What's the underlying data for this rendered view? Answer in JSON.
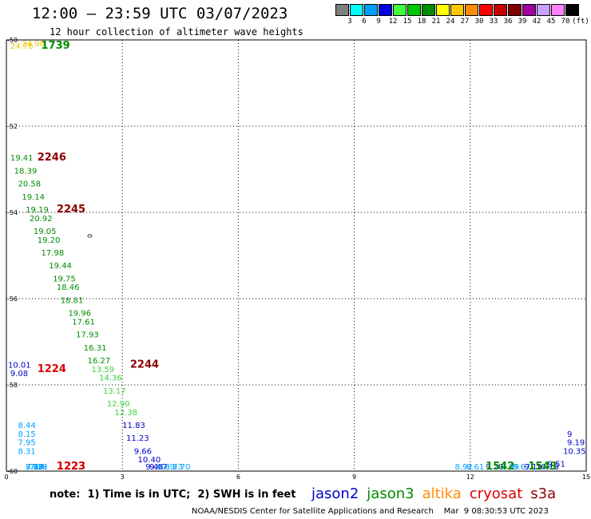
{
  "header": {
    "title": "12:00 — 23:59 UTC 03/07/2023",
    "subtitle": "12 hour collection of altimeter wave heights"
  },
  "colorbar": {
    "unit_label": "(ft)",
    "steps": [
      {
        "label": "3",
        "color": "#7f7f7f"
      },
      {
        "label": "6",
        "color": "#00ffff"
      },
      {
        "label": "9",
        "color": "#00a0ff"
      },
      {
        "label": "12",
        "color": "#0000e0"
      },
      {
        "label": "15",
        "color": "#40ff40"
      },
      {
        "label": "18",
        "color": "#00c800"
      },
      {
        "label": "21",
        "color": "#008c00"
      },
      {
        "label": "24",
        "color": "#ffff00"
      },
      {
        "label": "27",
        "color": "#ffc800"
      },
      {
        "label": "30",
        "color": "#ff8c00"
      },
      {
        "label": "33",
        "color": "#ff0000"
      },
      {
        "label": "36",
        "color": "#c80000"
      },
      {
        "label": "39",
        "color": "#800000"
      },
      {
        "label": "42",
        "color": "#a000a0"
      },
      {
        "label": "45",
        "color": "#c8a0ff"
      },
      {
        "label": "70",
        "color": "#ff80ff"
      },
      {
        "label": "",
        "color": "#000000"
      }
    ]
  },
  "map": {
    "lon_range": [
      0,
      15
    ],
    "lat_range": [
      -60,
      -50
    ],
    "x_ticks": [
      "0",
      "3",
      "6",
      "9",
      "12",
      "15"
    ],
    "y_ticks": [
      "-50",
      "-52",
      "-54",
      "-56",
      "-58",
      "-60"
    ],
    "grid": "dotted",
    "contour_label": "0",
    "colors": {
      "jason2": "#0000cc",
      "jason3": "#008c00",
      "altika": "#ff8c00",
      "cryosat": "#dd0000",
      "s3a": "#8b0000",
      "cyan": "#00a0ff",
      "lightgreen": "#40d040",
      "yellow": "#e8c800"
    },
    "values": [
      {
        "lon": 0.4,
        "lat": -50.0,
        "v": "24.90",
        "c": "yellow"
      },
      {
        "lon": 0.1,
        "lat": -50.2,
        "v": "24.78",
        "c": "yellow"
      },
      {
        "lon": 0.1,
        "lat": -52.8,
        "v": "19.41",
        "c": "jason3"
      },
      {
        "lon": 0.2,
        "lat": -53.1,
        "v": "18.39",
        "c": "jason3"
      },
      {
        "lon": 0.3,
        "lat": -53.4,
        "v": "20.58",
        "c": "jason3"
      },
      {
        "lon": 0.4,
        "lat": -53.7,
        "v": "19.14",
        "c": "jason3"
      },
      {
        "lon": 0.5,
        "lat": -54.0,
        "v": "19.19",
        "c": "jason3"
      },
      {
        "lon": 0.6,
        "lat": -54.2,
        "v": "20.92",
        "c": "jason3"
      },
      {
        "lon": 0.7,
        "lat": -54.5,
        "v": "19.05",
        "c": "jason3"
      },
      {
        "lon": 0.8,
        "lat": -54.7,
        "v": "19.20",
        "c": "jason3"
      },
      {
        "lon": 0.9,
        "lat": -55.0,
        "v": "17.98",
        "c": "jason3"
      },
      {
        "lon": 1.1,
        "lat": -55.3,
        "v": "19.44",
        "c": "jason3"
      },
      {
        "lon": 1.2,
        "lat": -55.6,
        "v": "19.75",
        "c": "jason3"
      },
      {
        "lon": 1.3,
        "lat": -55.8,
        "v": "18.46",
        "c": "jason3"
      },
      {
        "lon": 1.4,
        "lat": -56.1,
        "v": "18.81",
        "c": "jason3"
      },
      {
        "lon": 1.6,
        "lat": -56.4,
        "v": "19.96",
        "c": "jason3"
      },
      {
        "lon": 1.7,
        "lat": -56.6,
        "v": "17.61",
        "c": "jason3"
      },
      {
        "lon": 1.8,
        "lat": -56.9,
        "v": "17.93",
        "c": "jason3"
      },
      {
        "lon": 2.0,
        "lat": -57.2,
        "v": "16.31",
        "c": "jason3"
      },
      {
        "lon": 2.1,
        "lat": -57.5,
        "v": "16.27",
        "c": "jason3"
      },
      {
        "lon": 2.2,
        "lat": -57.7,
        "v": "13.59",
        "c": "lightgreen"
      },
      {
        "lon": 2.4,
        "lat": -57.9,
        "v": "14.36",
        "c": "lightgreen"
      },
      {
        "lon": 2.5,
        "lat": -58.2,
        "v": "13.17",
        "c": "lightgreen"
      },
      {
        "lon": 2.6,
        "lat": -58.5,
        "v": "12.90",
        "c": "lightgreen"
      },
      {
        "lon": 2.8,
        "lat": -58.7,
        "v": "12.38",
        "c": "lightgreen"
      },
      {
        "lon": 3.0,
        "lat": -59.0,
        "v": "11.83",
        "c": "jason2"
      },
      {
        "lon": 3.1,
        "lat": -59.3,
        "v": "11.23",
        "c": "jason2"
      },
      {
        "lon": 3.3,
        "lat": -59.6,
        "v": "9.66",
        "c": "jason2"
      },
      {
        "lon": 3.4,
        "lat": -59.8,
        "v": "10.40",
        "c": "jason2"
      },
      {
        "lon": 3.6,
        "lat": -60.1,
        "v": "9.48",
        "c": "jason2"
      },
      {
        "lon": 3.7,
        "lat": -60.4,
        "v": "9.07",
        "c": "jason2"
      },
      {
        "lon": 3.9,
        "lat": -60.7,
        "v": "8.69",
        "c": "cyan"
      },
      {
        "lon": 4.1,
        "lat": -60.9,
        "v": "8.53",
        "c": "cyan"
      },
      {
        "lon": 4.3,
        "lat": -61.2,
        "v": "7.70",
        "c": "cyan"
      },
      {
        "lon": 0.0,
        "lat": -57.6,
        "v": "10.01",
        "c": "jason2"
      },
      {
        "lon": 0.1,
        "lat": -57.8,
        "v": "9.08",
        "c": "jason2"
      },
      {
        "lon": 0.3,
        "lat": -59.0,
        "v": "8.44",
        "c": "cyan"
      },
      {
        "lon": 0.3,
        "lat": -59.2,
        "v": "8.15",
        "c": "cyan"
      },
      {
        "lon": 0.3,
        "lat": -59.4,
        "v": "7.95",
        "c": "cyan"
      },
      {
        "lon": 0.3,
        "lat": -59.6,
        "v": "8.31",
        "c": "cyan"
      },
      {
        "lon": 0.5,
        "lat": -60.2,
        "v": "7.13",
        "c": "cyan"
      },
      {
        "lon": 0.5,
        "lat": -60.4,
        "v": "7.27",
        "c": "cyan"
      },
      {
        "lon": 0.5,
        "lat": -60.6,
        "v": "7.40",
        "c": "cyan"
      },
      {
        "lon": 0.5,
        "lat": -60.9,
        "v": "8.07",
        "c": "cyan"
      },
      {
        "lon": 0.6,
        "lat": -61.2,
        "v": "7.39",
        "c": "cyan"
      },
      {
        "lon": 0.6,
        "lat": -61.5,
        "v": "7.28",
        "c": "cyan"
      },
      {
        "lon": 11.6,
        "lat": -61.6,
        "v": "8.92",
        "c": "cyan"
      },
      {
        "lon": 11.9,
        "lat": -61.4,
        "v": "8.61",
        "c": "cyan"
      },
      {
        "lon": 12.4,
        "lat": -61.0,
        "v": "9.20",
        "c": "jason2"
      },
      {
        "lon": 12.8,
        "lat": -60.8,
        "v": "8.99",
        "c": "cyan"
      },
      {
        "lon": 13.1,
        "lat": -60.6,
        "v": "8.67",
        "c": "cyan"
      },
      {
        "lon": 13.4,
        "lat": -60.4,
        "v": "9.11",
        "c": "jason2"
      },
      {
        "lon": 13.7,
        "lat": -60.1,
        "v": "10.18",
        "c": "jason2"
      },
      {
        "lon": 14.0,
        "lat": -59.9,
        "v": "9.51",
        "c": "jason2"
      },
      {
        "lon": 14.4,
        "lat": -59.6,
        "v": "10.35",
        "c": "jason2"
      },
      {
        "lon": 14.7,
        "lat": -59.4,
        "v": "9.19",
        "c": "jason2"
      },
      {
        "lon": 14.9,
        "lat": -59.2,
        "v": "9",
        "c": "jason2"
      }
    ],
    "times": [
      {
        "lon": 0.9,
        "lat": -50.2,
        "v": "1739",
        "c": "jason3"
      },
      {
        "lon": 0.8,
        "lat": -52.8,
        "v": "2246",
        "c": "s3a"
      },
      {
        "lon": 1.3,
        "lat": -54.0,
        "v": "2245",
        "c": "s3a"
      },
      {
        "lon": 3.2,
        "lat": -57.6,
        "v": "2244",
        "c": "s3a"
      },
      {
        "lon": 0.8,
        "lat": -57.7,
        "v": "1224",
        "c": "cryosat"
      },
      {
        "lon": 1.3,
        "lat": -61.2,
        "v": "1223",
        "c": "cryosat"
      },
      {
        "lon": 1.3,
        "lat": -61.5,
        "v": "1223",
        "c": "cryosat"
      },
      {
        "lon": 13.5,
        "lat": -60.9,
        "v": "1543",
        "c": "jason3"
      },
      {
        "lon": 12.4,
        "lat": -61.6,
        "v": "1542",
        "c": "jason3"
      }
    ]
  },
  "note": "note:  1) Time is in UTC;  2) SWH is in feet",
  "legend": [
    {
      "label": "jason2",
      "color": "#0000cc"
    },
    {
      "label": "jason3",
      "color": "#008c00"
    },
    {
      "label": "altika",
      "color": "#ff8c00"
    },
    {
      "label": "cryosat",
      "color": "#dd0000"
    },
    {
      "label": "s3a",
      "color": "#8b0000"
    }
  ],
  "footer": "NOAA/NESDIS Center for Satellite Applications and Research    Mar  9 08:30:53 UTC 2023"
}
